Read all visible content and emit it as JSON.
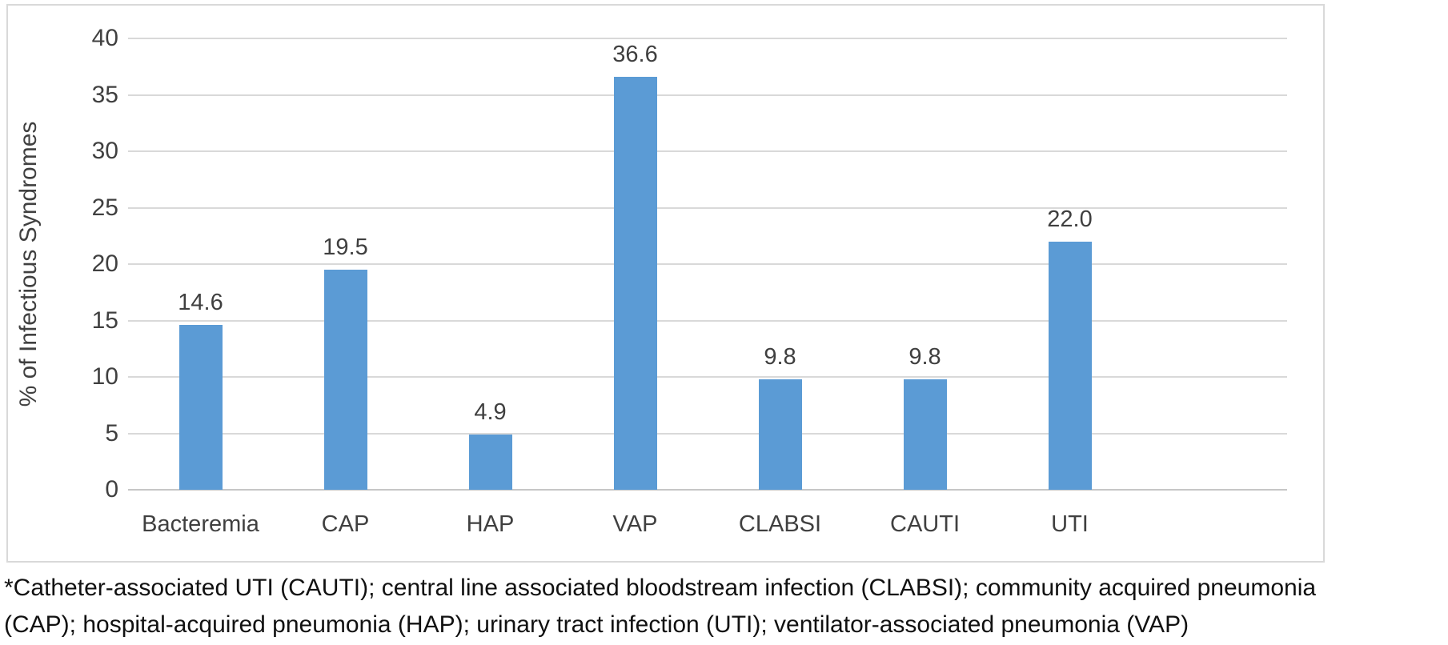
{
  "chart_data": {
    "type": "bar",
    "categories": [
      "Bacteremia",
      "CAP",
      "HAP",
      "VAP",
      "CLABSI",
      "CAUTI",
      "UTI"
    ],
    "values": [
      14.6,
      19.5,
      4.9,
      36.6,
      9.8,
      9.8,
      22.0
    ],
    "value_labels": [
      "14.6",
      "19.5",
      "4.9",
      "36.6",
      "9.8",
      "9.8",
      "22.0"
    ],
    "title": "",
    "xlabel": "",
    "ylabel": "% of Infectious Syndromes",
    "ylim": [
      0,
      40
    ],
    "ytick_labels": [
      "0",
      "5",
      "10",
      "15",
      "20",
      "25",
      "30",
      "35",
      "40"
    ],
    "grid": true,
    "legend": false,
    "data_labels_position": "above-bars",
    "empty_trailing_slots": 1,
    "colors": {
      "bar": "#5B9BD5",
      "gridline": "#D9D9D9",
      "axis_line": "#C6C6C6",
      "axis_text": "#404040",
      "frame_border": "#D9D9D9"
    }
  },
  "footnote": {
    "lines": [
      "*Catheter-associated UTI (CAUTI); central line associated bloodstream infection (CLABSI); community acquired pneumonia",
      "(CAP); hospital-acquired pneumonia (HAP); urinary tract infection (UTI); ventilator-associated pneumonia (VAP)"
    ]
  }
}
